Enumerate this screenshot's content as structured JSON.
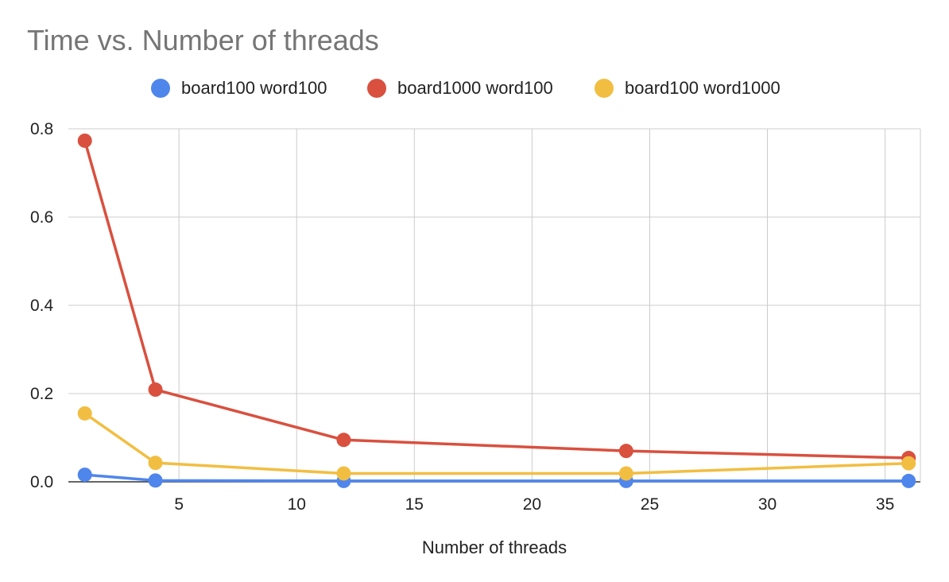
{
  "chart_data": {
    "type": "line",
    "title": "Time vs. Number of threads",
    "xlabel": "Number of threads",
    "ylabel": "",
    "x": [
      1,
      4,
      12,
      24,
      36
    ],
    "xlim": [
      0.3,
      36.5
    ],
    "ylim": [
      0,
      0.8
    ],
    "xticks": [
      5,
      10,
      15,
      20,
      25,
      30,
      35
    ],
    "xtick_labels": [
      "5",
      "10",
      "15",
      "20",
      "25",
      "30",
      "35"
    ],
    "yticks": [
      0,
      0.2,
      0.4,
      0.6,
      0.8
    ],
    "ytick_labels": [
      "0.0",
      "0.2",
      "0.4",
      "0.6",
      "0.8"
    ],
    "grid": true,
    "legend_position": "top",
    "series": [
      {
        "name": "board100 word100",
        "color": "#4f86ec",
        "values": [
          0.016,
          0.003,
          0.002,
          0.002,
          0.002
        ]
      },
      {
        "name": "board1000 word100",
        "color": "#d9503f",
        "values": [
          0.773,
          0.209,
          0.095,
          0.07,
          0.054
        ]
      },
      {
        "name": "board100 word1000",
        "color": "#f2be42",
        "values": [
          0.155,
          0.043,
          0.019,
          0.019,
          0.042
        ]
      }
    ]
  }
}
